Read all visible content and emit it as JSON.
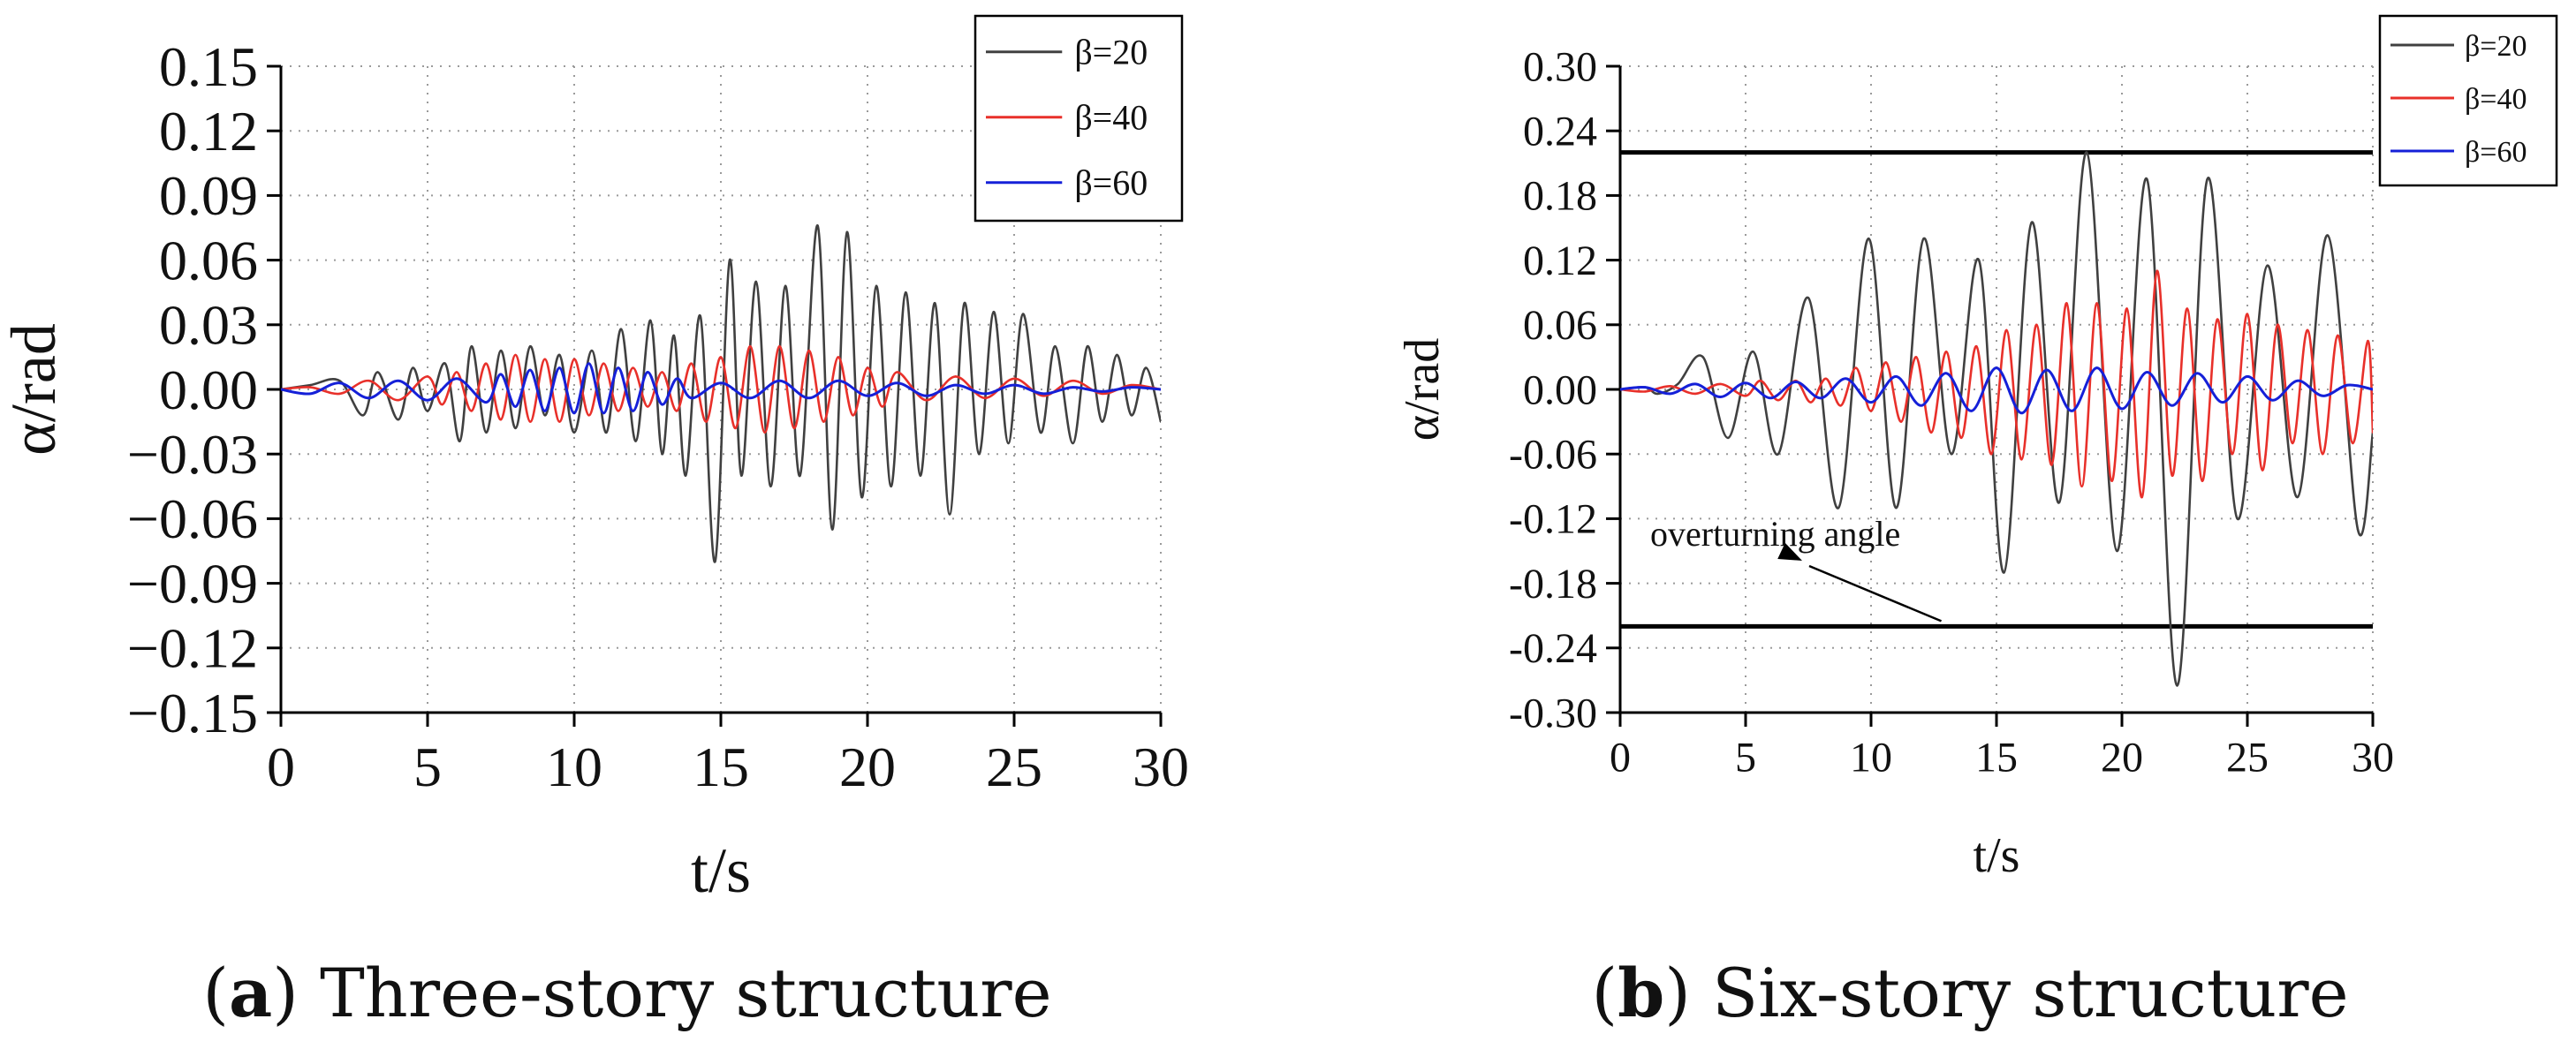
{
  "captions": {
    "a": {
      "open": "(",
      "letter": "a",
      "close": ")",
      "text": " Three-story structure"
    },
    "b": {
      "open": "(",
      "letter": "b",
      "close": ")",
      "text": " Six-story structure"
    }
  },
  "colors": {
    "beta20": "#404040",
    "beta40": "#e8302a",
    "beta60": "#1520d8",
    "limit": "#000000",
    "grid": "#9a9a9a"
  },
  "chart_data": [
    {
      "type": "line",
      "title": "Three-story structure",
      "xlabel": "t/s",
      "ylabel": "α/rad",
      "xlim": [
        0,
        30
      ],
      "ylim": [
        -0.15,
        0.15
      ],
      "xticks": [
        0,
        5,
        10,
        15,
        20,
        25,
        30
      ],
      "xtick_labels": [
        "0",
        "5",
        "10",
        "15",
        "20",
        "25",
        "30"
      ],
      "yticks": [
        0.15,
        0.12,
        0.09,
        0.06,
        0.03,
        0.0,
        -0.03,
        -0.06,
        -0.09,
        -0.12,
        -0.15
      ],
      "ytick_labels": [
        "0.15",
        "0.12",
        "0.09",
        "0.06",
        "0.03",
        "0.00",
        "−0.03",
        "−0.06",
        "−0.09",
        "−0.12",
        "−0.15"
      ],
      "grid": true,
      "legend": "top-right",
      "series": [
        {
          "name": "β=20",
          "x": [
            0,
            1,
            2,
            2.8,
            3.3,
            4,
            4.5,
            5,
            5.6,
            6.1,
            6.5,
            7,
            7.5,
            8,
            8.5,
            9,
            9.5,
            10,
            10.6,
            11.1,
            11.6,
            12.1,
            12.6,
            13,
            13.4,
            13.8,
            14.3,
            14.8,
            15.3,
            15.7,
            16.2,
            16.7,
            17.2,
            17.7,
            18.3,
            18.8,
            19.3,
            19.8,
            20.3,
            20.8,
            21.3,
            21.8,
            22.3,
            22.8,
            23.3,
            23.8,
            24.3,
            24.8,
            25.3,
            25.9,
            26.4,
            27,
            27.5,
            28,
            28.5,
            29,
            29.5,
            30
          ],
          "values": [
            0,
            0.002,
            0.004,
            -0.012,
            0.008,
            -0.014,
            0.01,
            -0.01,
            0.012,
            -0.024,
            0.02,
            -0.02,
            0.018,
            -0.018,
            0.02,
            -0.012,
            0.016,
            -0.02,
            0.018,
            -0.02,
            0.028,
            -0.024,
            0.032,
            -0.03,
            0.025,
            -0.04,
            0.034,
            -0.08,
            0.06,
            -0.04,
            0.05,
            -0.045,
            0.048,
            -0.04,
            0.076,
            -0.065,
            0.073,
            -0.05,
            0.048,
            -0.045,
            0.045,
            -0.04,
            0.04,
            -0.058,
            0.04,
            -0.03,
            0.036,
            -0.025,
            0.035,
            -0.02,
            0.02,
            -0.025,
            0.02,
            -0.015,
            0.016,
            -0.012,
            0.01,
            -0.015
          ]
        },
        {
          "name": "β=40",
          "x": [
            0,
            1,
            2,
            3,
            4,
            5,
            5.5,
            6,
            6.5,
            7,
            7.5,
            8,
            8.5,
            9,
            9.5,
            10,
            10.5,
            11,
            11.5,
            12,
            12.5,
            13,
            13.5,
            14,
            14.5,
            15,
            15.5,
            16,
            16.5,
            17,
            17.5,
            18,
            18.5,
            19,
            19.5,
            20,
            20.5,
            21,
            22,
            23,
            24,
            25,
            26,
            27,
            28,
            29,
            30
          ],
          "values": [
            0,
            0.001,
            -0.002,
            0.004,
            -0.005,
            0.006,
            -0.007,
            0.008,
            -0.01,
            0.012,
            -0.014,
            0.016,
            -0.015,
            0.014,
            -0.015,
            0.014,
            -0.012,
            0.012,
            -0.01,
            0.01,
            -0.008,
            0.008,
            -0.01,
            0.012,
            -0.015,
            0.015,
            -0.018,
            0.02,
            -0.02,
            0.02,
            -0.018,
            0.018,
            -0.015,
            0.015,
            -0.012,
            0.01,
            -0.008,
            0.008,
            -0.005,
            0.006,
            -0.004,
            0.005,
            -0.003,
            0.004,
            -0.002,
            0.002,
            0
          ]
        },
        {
          "name": "β=60",
          "x": [
            0,
            1,
            2,
            3,
            4,
            5,
            6,
            7,
            7.5,
            8,
            8.5,
            9,
            9.5,
            10,
            10.5,
            11,
            11.5,
            12,
            12.5,
            13,
            13.5,
            14,
            15,
            16,
            17,
            18,
            19,
            20,
            21,
            22,
            23,
            24,
            25,
            26,
            27,
            28,
            29,
            30
          ],
          "values": [
            0,
            -0.002,
            0.003,
            -0.004,
            0.004,
            -0.005,
            0.005,
            -0.006,
            0.007,
            -0.008,
            0.009,
            -0.01,
            0.01,
            -0.011,
            0.012,
            -0.011,
            0.01,
            -0.01,
            0.008,
            -0.007,
            0.005,
            -0.004,
            0.003,
            -0.004,
            0.004,
            -0.004,
            0.004,
            -0.003,
            0.003,
            -0.003,
            0.002,
            -0.002,
            0.002,
            -0.002,
            0.001,
            -0.001,
            0.001,
            0
          ]
        }
      ]
    },
    {
      "type": "line",
      "title": "Six-story structure",
      "xlabel": "t/s",
      "ylabel": "α/rad",
      "xlim": [
        0,
        30
      ],
      "ylim": [
        -0.3,
        0.3
      ],
      "xticks": [
        0,
        5,
        10,
        15,
        20,
        25,
        30
      ],
      "xtick_labels": [
        "0",
        "5",
        "10",
        "15",
        "20",
        "25",
        "30"
      ],
      "yticks": [
        0.3,
        0.24,
        0.18,
        0.12,
        0.06,
        0.0,
        -0.06,
        -0.12,
        -0.18,
        -0.24,
        -0.3
      ],
      "ytick_labels": [
        "0.30",
        "0.24",
        "0.18",
        "0.12",
        "0.06",
        "0.00",
        "-0.06",
        "-0.12",
        "-0.18",
        "-0.24",
        "-0.30"
      ],
      "grid": true,
      "legend": "top-right",
      "reference_lines": [
        0.22,
        -0.22
      ],
      "annotation": {
        "text": "overturning angle",
        "arrow_to": [
          12.8,
          -0.22
        ]
      },
      "series": [
        {
          "name": "β=20",
          "x": [
            0,
            1,
            1.5,
            2.3,
            3.3,
            4.3,
            5.3,
            6.3,
            7.5,
            8.7,
            9.9,
            11,
            12.1,
            13.2,
            14.3,
            15.3,
            16.4,
            17.5,
            18.6,
            19.8,
            21,
            22.2,
            23.4,
            24.6,
            25.8,
            27,
            28.2,
            29.4,
            30
          ],
          "values": [
            0,
            0.002,
            -0.004,
            0.005,
            0.03,
            -0.045,
            0.035,
            -0.06,
            0.085,
            -0.11,
            0.14,
            -0.11,
            0.14,
            -0.06,
            0.12,
            -0.17,
            0.155,
            -0.105,
            0.22,
            -0.15,
            0.195,
            -0.275,
            0.195,
            -0.12,
            0.115,
            -0.1,
            0.143,
            -0.13,
            -0.04
          ]
        },
        {
          "name": "β=40",
          "x": [
            0,
            1,
            2,
            3,
            4,
            5,
            5.6,
            6.3,
            7,
            7.6,
            8.2,
            8.8,
            9.4,
            10,
            10.6,
            11.2,
            11.8,
            12.4,
            13,
            13.6,
            14.2,
            14.8,
            15.4,
            16,
            16.6,
            17.2,
            17.8,
            18.4,
            19,
            19.6,
            20.2,
            20.8,
            21.4,
            22,
            22.6,
            23.2,
            23.8,
            24.4,
            25,
            25.6,
            26.2,
            26.8,
            27.4,
            28,
            28.6,
            29.2,
            29.8,
            30
          ],
          "values": [
            0,
            -0.002,
            0.003,
            -0.004,
            0.005,
            -0.006,
            0.008,
            -0.01,
            0.008,
            -0.012,
            0.01,
            -0.015,
            0.02,
            -0.02,
            0.025,
            -0.03,
            0.03,
            -0.04,
            0.035,
            -0.045,
            0.04,
            -0.06,
            0.055,
            -0.065,
            0.06,
            -0.07,
            0.08,
            -0.09,
            0.08,
            -0.085,
            0.075,
            -0.1,
            0.11,
            -0.08,
            0.075,
            -0.085,
            0.065,
            -0.06,
            0.07,
            -0.075,
            0.06,
            -0.05,
            0.055,
            -0.06,
            0.05,
            -0.05,
            0.045,
            -0.04
          ]
        },
        {
          "name": "β=60",
          "x": [
            0,
            1,
            2,
            3,
            4,
            5,
            6,
            7,
            8,
            9,
            10,
            11,
            12,
            13,
            14,
            15,
            16,
            17,
            18,
            19,
            20,
            21,
            22,
            23,
            24,
            25,
            26,
            27,
            28,
            29,
            30
          ],
          "values": [
            0,
            0.002,
            -0.004,
            0.005,
            -0.007,
            0.006,
            -0.008,
            0.007,
            -0.008,
            0.01,
            -0.012,
            0.012,
            -0.015,
            0.015,
            -0.02,
            0.02,
            -0.022,
            0.018,
            -0.02,
            0.02,
            -0.018,
            0.016,
            -0.015,
            0.015,
            -0.012,
            0.012,
            -0.01,
            0.008,
            -0.006,
            0.004,
            0
          ]
        }
      ]
    }
  ]
}
